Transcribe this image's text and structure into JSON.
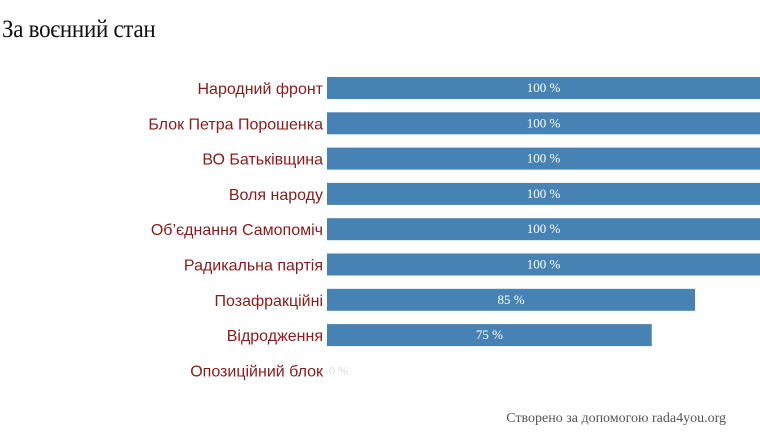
{
  "title": "За воєнний стан",
  "footer": "Створено за допомогою rada4you.org",
  "colors": {
    "bar": "#4682b4",
    "label": "#8b1a1a"
  },
  "chart_data": {
    "type": "bar",
    "orientation": "horizontal",
    "categories": [
      "Народний фронт",
      "Блок Петра Порошенка",
      "ВО Батьківщина",
      "Воля народу",
      "Об’єднання Самопоміч",
      "Радикальна партія",
      "Позафракційні",
      "Відродження",
      "Опозиційний блок"
    ],
    "values": [
      100,
      100,
      100,
      100,
      100,
      100,
      85,
      75,
      0
    ],
    "value_labels": [
      "100 %",
      "100 %",
      "100 %",
      "100 %",
      "100 %",
      "100 %",
      "85 %",
      "75 %",
      "0 %"
    ],
    "xlim": [
      0,
      100
    ]
  }
}
